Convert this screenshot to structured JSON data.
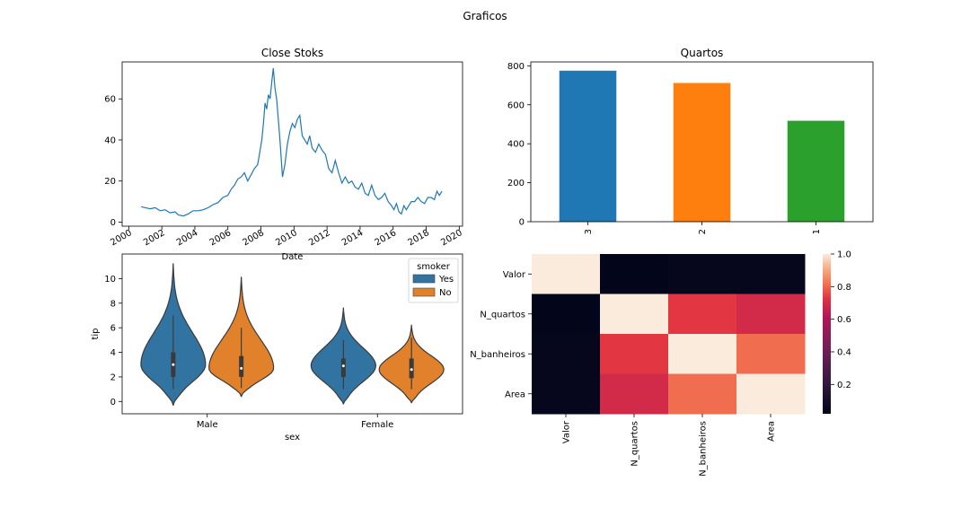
{
  "figure": {
    "title": "Graficos"
  },
  "chart_data": [
    {
      "type": "line",
      "title": "Close Stoks",
      "xlabel": "Date",
      "ylabel": "",
      "xlim": [
        1999.6,
        2020.2
      ],
      "ylim": [
        -2,
        78
      ],
      "xticks": [
        2000,
        2002,
        2004,
        2006,
        2008,
        2010,
        2012,
        2014,
        2016,
        2018,
        2020
      ],
      "xtick_labels": [
        "2000",
        "2002",
        "2004",
        "2006",
        "2008",
        "2010",
        "2012",
        "2014",
        "2016",
        "2018",
        "2020"
      ],
      "yticks": [
        0,
        20,
        40,
        60
      ],
      "ytick_labels": [
        "0",
        "20",
        "40",
        "60"
      ],
      "color": "#1f77b4",
      "series": [
        {
          "x": [
            2000.75,
            2001.0,
            2001.3,
            2001.6,
            2001.9,
            2002.2,
            2002.5,
            2002.8,
            2003.0,
            2003.3,
            2003.6,
            2003.9,
            2004.2,
            2004.5,
            2004.8,
            2005.1,
            2005.4,
            2005.7,
            2006.0,
            2006.2,
            2006.4,
            2006.6,
            2006.8,
            2007.0,
            2007.2,
            2007.4,
            2007.6,
            2007.8,
            2007.95,
            2008.05,
            2008.15,
            2008.25,
            2008.35,
            2008.45,
            2008.55,
            2008.65,
            2008.75,
            2008.85,
            2008.95,
            2009.05,
            2009.15,
            2009.3,
            2009.45,
            2009.6,
            2009.75,
            2009.9,
            2010.05,
            2010.2,
            2010.35,
            2010.5,
            2010.65,
            2010.8,
            2010.95,
            2011.1,
            2011.3,
            2011.5,
            2011.7,
            2011.9,
            2012.1,
            2012.3,
            2012.5,
            2012.7,
            2012.9,
            2013.1,
            2013.3,
            2013.5,
            2013.7,
            2013.9,
            2014.1,
            2014.3,
            2014.5,
            2014.7,
            2014.9,
            2015.1,
            2015.3,
            2015.5,
            2015.7,
            2015.9,
            2016.05,
            2016.2,
            2016.35,
            2016.5,
            2016.65,
            2016.8,
            2016.95,
            2017.1,
            2017.3,
            2017.5,
            2017.7,
            2017.9,
            2018.1,
            2018.3,
            2018.5,
            2018.65,
            2018.8,
            2018.95
          ],
          "y": [
            7.5,
            7.0,
            6.5,
            7.0,
            5.5,
            6.0,
            4.5,
            5.0,
            3.5,
            3.0,
            4.0,
            5.5,
            5.5,
            6.0,
            7.0,
            8.5,
            9.5,
            12.0,
            13.0,
            16.0,
            18.0,
            21.0,
            22.0,
            24.0,
            20.0,
            23.0,
            26.0,
            28.0,
            35.0,
            40.0,
            48.0,
            58.0,
            55.0,
            62.0,
            60.0,
            68.0,
            75.0,
            65.0,
            60.0,
            50.0,
            40.0,
            22.0,
            28.0,
            38.0,
            44.0,
            48.0,
            46.0,
            50.0,
            52.0,
            42.0,
            40.0,
            38.0,
            42.0,
            36.0,
            34.0,
            38.0,
            35.0,
            33.0,
            26.0,
            24.0,
            30.0,
            24.0,
            19.0,
            22.0,
            19.0,
            20.0,
            17.0,
            16.0,
            19.0,
            14.0,
            13.0,
            18.0,
            13.0,
            11.0,
            12.0,
            14.0,
            10.0,
            8.0,
            6.0,
            9.0,
            5.0,
            4.0,
            8.0,
            6.0,
            8.0,
            10.0,
            10.0,
            12.0,
            10.0,
            9.0,
            12.0,
            12.0,
            11.0,
            15.0,
            13.0,
            15.0
          ]
        }
      ]
    },
    {
      "type": "bar",
      "title": "Quartos",
      "categories": [
        "3",
        "2",
        "1"
      ],
      "values": [
        775,
        712,
        518
      ],
      "colors": [
        "#1f77b4",
        "#ff7f0e",
        "#2ca02c"
      ],
      "ylim": [
        0,
        820
      ],
      "yticks": [
        0,
        200,
        400,
        600,
        800
      ],
      "ytick_labels": [
        "0",
        "200",
        "400",
        "600",
        "800"
      ],
      "xlabel": "",
      "ylabel": ""
    },
    {
      "type": "violin",
      "xlabel": "sex",
      "ylabel": "tip",
      "categories": [
        "Male",
        "Female"
      ],
      "hue_title": "smoker",
      "hue": [
        "Yes",
        "No"
      ],
      "colors": [
        "#3274a1",
        "#e1812c"
      ],
      "ylim": [
        -1,
        12
      ],
      "yticks": [
        0,
        2,
        4,
        6,
        8,
        10
      ],
      "ytick_labels": [
        "0",
        "2",
        "4",
        "6",
        "8",
        "10"
      ],
      "legend_position": "top-right",
      "violins": [
        {
          "category": "Male",
          "hue": "Yes",
          "min": -0.3,
          "max": 11.2,
          "q1": 2.0,
          "median": 3.0,
          "q3": 4.0,
          "whisker_low": 1.0,
          "whisker_high": 7.0
        },
        {
          "category": "Male",
          "hue": "No",
          "min": 0.4,
          "max": 10.1,
          "q1": 2.0,
          "median": 2.7,
          "q3": 3.7,
          "whisker_low": 1.1,
          "whisker_high": 6.0
        },
        {
          "category": "Female",
          "hue": "Yes",
          "min": -0.2,
          "max": 7.6,
          "q1": 2.0,
          "median": 2.9,
          "q3": 3.5,
          "whisker_low": 1.0,
          "whisker_high": 5.0
        },
        {
          "category": "Female",
          "hue": "No",
          "min": -0.1,
          "max": 6.2,
          "q1": 1.9,
          "median": 2.6,
          "q3": 3.5,
          "whisker_low": 1.0,
          "whisker_high": 5.2
        }
      ]
    },
    {
      "type": "heatmap",
      "rows": [
        "Valor",
        "N_quartos",
        "N_banheiros",
        "Area"
      ],
      "cols": [
        "Valor",
        "N_quartos",
        "N_banheiros",
        "Area"
      ],
      "values": [
        [
          1.0,
          0.02,
          0.03,
          0.03
        ],
        [
          0.02,
          1.0,
          0.73,
          0.69
        ],
        [
          0.03,
          0.73,
          1.0,
          0.81
        ],
        [
          0.03,
          0.69,
          0.81,
          1.0
        ]
      ],
      "colorbar_range": [
        0.02,
        1.0
      ],
      "colorbar_ticks": [
        0.2,
        0.4,
        0.6,
        0.8,
        1.0
      ],
      "colorbar_tick_labels": [
        "0.2",
        "0.4",
        "0.6",
        "0.8",
        "1.0"
      ],
      "colormap": "rocket"
    }
  ]
}
